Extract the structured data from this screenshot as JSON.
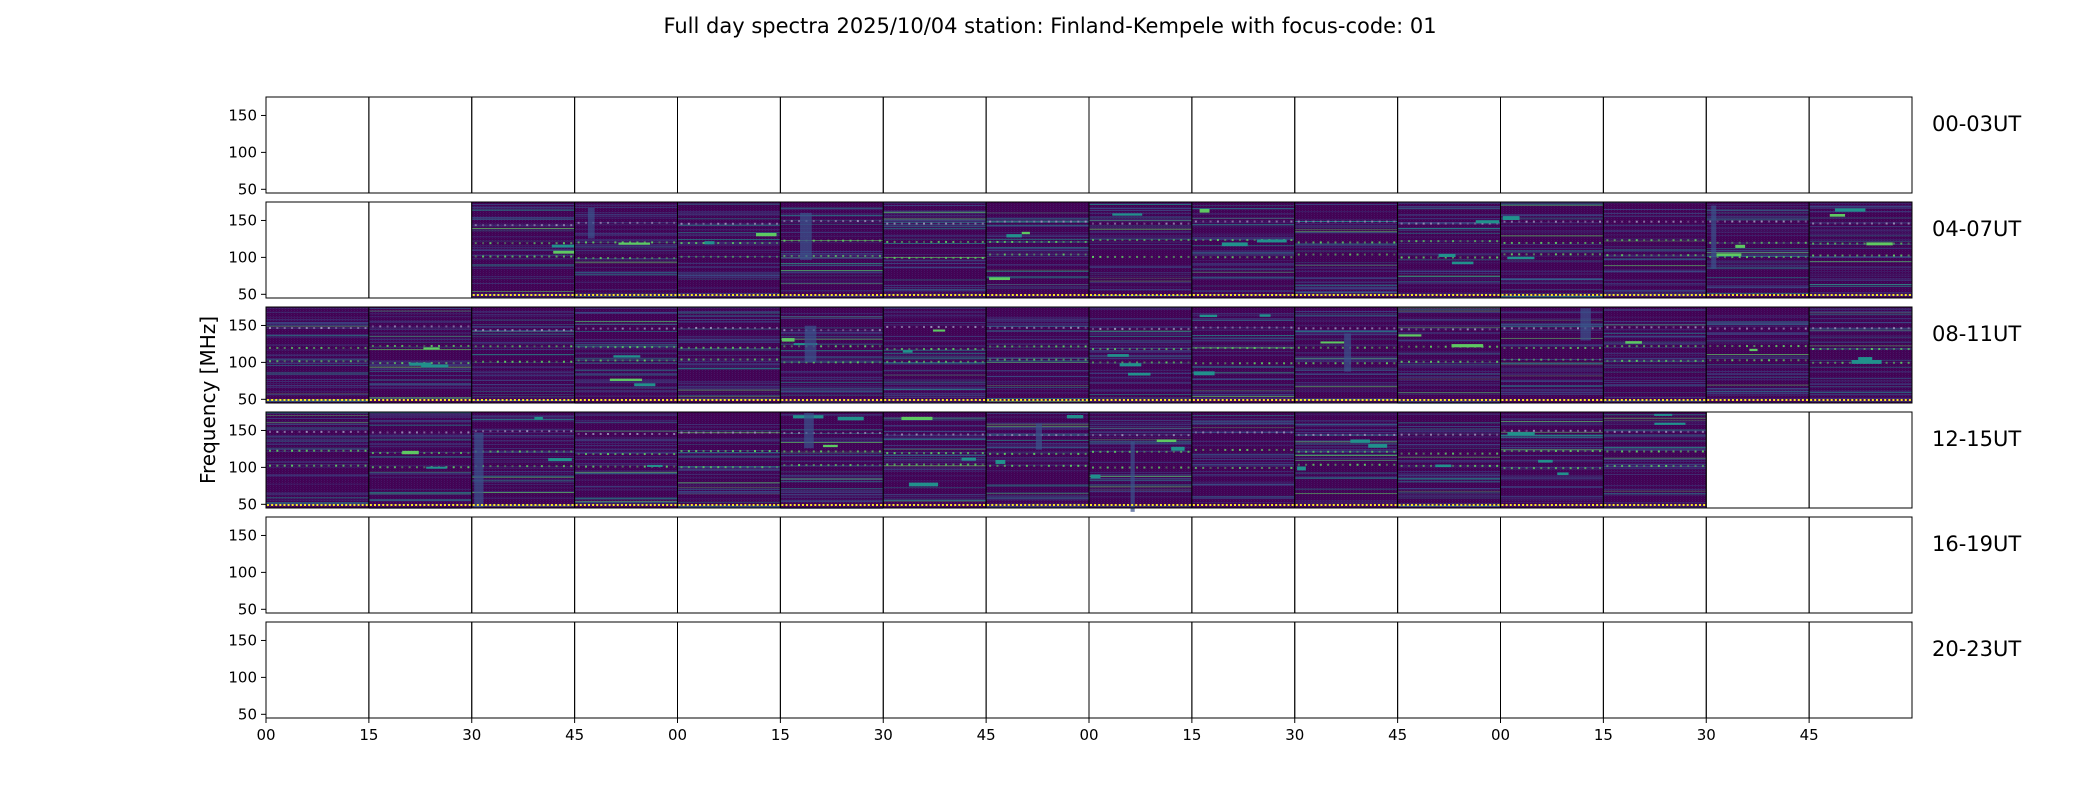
{
  "chart_data": {
    "type": "heatmap",
    "title": "Full day spectra 2025/10/04 station: Finland-Kempele with focus-code: 01",
    "ylabel": "Frequency [MHz]",
    "xlabel": "",
    "ylim": [
      45,
      175
    ],
    "yticks": [
      50,
      100,
      150
    ],
    "xtick_labels": [
      "00",
      "15",
      "30",
      "45",
      "00",
      "15",
      "30",
      "45",
      "00",
      "15",
      "30",
      "45",
      "00",
      "15",
      "30",
      "45"
    ],
    "panels_per_row": 16,
    "panel_minutes": 15,
    "colormap": [
      "#440154",
      "#3b528b",
      "#21918c",
      "#5ec962",
      "#fde725"
    ],
    "rows": [
      {
        "label": "00-03UT",
        "data_panels": [
          false,
          false,
          false,
          false,
          false,
          false,
          false,
          false,
          false,
          false,
          false,
          false,
          false,
          false,
          false,
          false
        ]
      },
      {
        "label": "04-07UT",
        "data_panels": [
          false,
          false,
          true,
          true,
          true,
          true,
          true,
          true,
          true,
          true,
          true,
          true,
          true,
          true,
          true,
          true
        ]
      },
      {
        "label": "08-11UT",
        "data_panels": [
          true,
          true,
          true,
          true,
          true,
          true,
          true,
          true,
          true,
          true,
          true,
          true,
          true,
          true,
          true,
          true
        ]
      },
      {
        "label": "12-15UT",
        "data_panels": [
          true,
          true,
          true,
          true,
          true,
          true,
          true,
          true,
          true,
          true,
          true,
          true,
          true,
          true,
          false,
          false
        ]
      },
      {
        "label": "16-19UT",
        "data_panels": [
          false,
          false,
          false,
          false,
          false,
          false,
          false,
          false,
          false,
          false,
          false,
          false,
          false,
          false,
          false,
          false
        ]
      },
      {
        "label": "20-23UT",
        "data_panels": [
          false,
          false,
          false,
          false,
          false,
          false,
          false,
          false,
          false,
          false,
          false,
          false,
          false,
          false,
          false,
          false
        ]
      }
    ]
  }
}
